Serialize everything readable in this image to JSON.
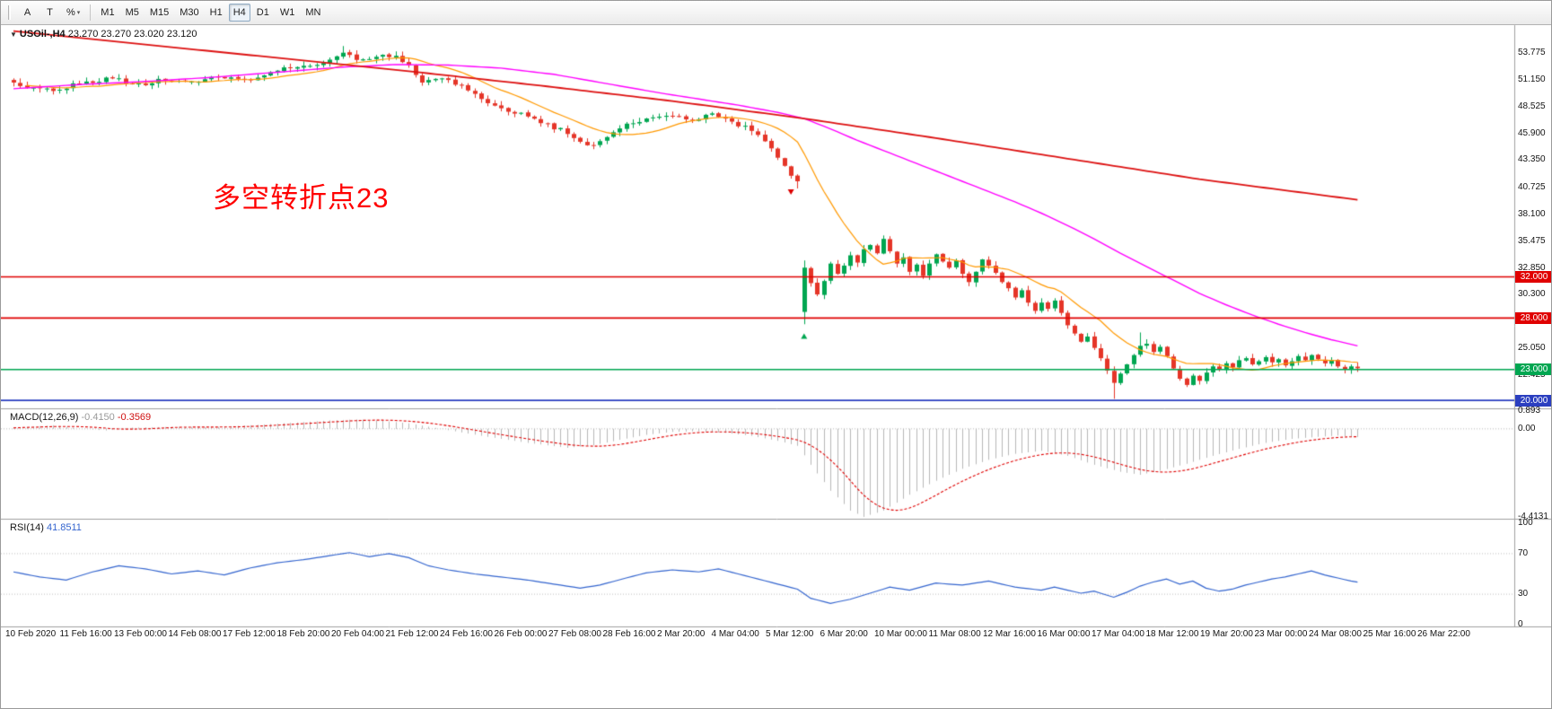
{
  "toolbar": {
    "tools": [
      {
        "label": "A",
        "name": "text-annotation-tool"
      },
      {
        "label": "T",
        "name": "text-tool"
      },
      {
        "label": "%",
        "name": "line-studies-tool",
        "caret": true
      }
    ],
    "timeframes": [
      {
        "label": "M1"
      },
      {
        "label": "M5"
      },
      {
        "label": "M15"
      },
      {
        "label": "M30"
      },
      {
        "label": "H1"
      },
      {
        "label": "H4",
        "active": true
      },
      {
        "label": "D1"
      },
      {
        "label": "W1"
      },
      {
        "label": "MN"
      }
    ]
  },
  "chart": {
    "collapse_icon": "▼",
    "symbol_tf": "USOil-,H4",
    "ohlc": "23.270 23.270 23.020 23.120",
    "annotation": {
      "text": "多空转折点23",
      "color": "#ff0000"
    }
  },
  "chart_data": {
    "type": "candlestick",
    "symbol": "USOil",
    "timeframe": "H4",
    "bars": 205,
    "up_color": "#00a651",
    "down_color": "#e53528",
    "price_axis": {
      "ticks": [
        "53.775",
        "51.150",
        "48.525",
        "45.900",
        "43.350",
        "40.725",
        "38.100",
        "35.475",
        "32.850",
        "30.300",
        "27.675",
        "25.050",
        "22.425"
      ],
      "ylim": [
        19.4,
        56.2
      ]
    },
    "hlines": [
      {
        "label": "32.000",
        "value": 32.0,
        "color": "#e00000"
      },
      {
        "label": "28.000",
        "value": 28.0,
        "color": "#e00000"
      },
      {
        "label": "23.000",
        "value": 23.0,
        "color": "#00a651"
      },
      {
        "label": "20.000",
        "value": 20.0,
        "color": "#2b3fc0"
      }
    ],
    "close_anchors": [
      [
        0,
        50.9
      ],
      [
        3,
        50.4
      ],
      [
        7,
        50.2
      ],
      [
        11,
        51.0
      ],
      [
        15,
        51.3
      ],
      [
        19,
        50.8
      ],
      [
        23,
        51.1
      ],
      [
        27,
        51.0
      ],
      [
        31,
        51.4
      ],
      [
        35,
        51.2
      ],
      [
        39,
        51.9
      ],
      [
        43,
        52.4
      ],
      [
        47,
        52.8
      ],
      [
        50,
        53.8
      ],
      [
        52,
        53.1
      ],
      [
        55,
        53.4
      ],
      [
        58,
        53.5
      ],
      [
        60,
        52.6
      ],
      [
        62,
        50.9
      ],
      [
        65,
        51.3
      ],
      [
        68,
        50.6
      ],
      [
        71,
        49.3
      ],
      [
        74,
        48.4
      ],
      [
        78,
        47.6
      ],
      [
        81,
        46.9
      ],
      [
        84,
        45.9
      ],
      [
        87,
        44.8
      ],
      [
        89,
        45.2
      ],
      [
        93,
        46.9
      ],
      [
        96,
        47.4
      ],
      [
        100,
        47.6
      ],
      [
        103,
        47.2
      ],
      [
        106,
        47.9
      ],
      [
        109,
        47.1
      ],
      [
        112,
        46.2
      ],
      [
        115,
        44.5
      ],
      [
        117,
        42.8
      ],
      [
        119,
        41.3
      ],
      [
        120,
        32.9
      ],
      [
        121,
        31.4
      ],
      [
        122,
        30.3
      ],
      [
        123,
        31.6
      ],
      [
        124,
        33.3
      ],
      [
        125,
        32.3
      ],
      [
        126,
        33.1
      ],
      [
        127,
        34.1
      ],
      [
        128,
        33.4
      ],
      [
        129,
        34.7
      ],
      [
        130,
        35.1
      ],
      [
        131,
        34.3
      ],
      [
        132,
        35.7
      ],
      [
        133,
        34.5
      ],
      [
        134,
        33.3
      ],
      [
        135,
        33.9
      ],
      [
        136,
        32.5
      ],
      [
        137,
        33.2
      ],
      [
        138,
        32.1
      ],
      [
        139,
        33.3
      ],
      [
        140,
        34.2
      ],
      [
        141,
        33.5
      ],
      [
        142,
        32.9
      ],
      [
        143,
        33.6
      ],
      [
        144,
        32.3
      ],
      [
        145,
        31.5
      ],
      [
        146,
        32.5
      ],
      [
        147,
        33.7
      ],
      [
        148,
        33.1
      ],
      [
        149,
        32.4
      ],
      [
        150,
        31.5
      ],
      [
        151,
        30.9
      ],
      [
        152,
        30.0
      ],
      [
        153,
        30.7
      ],
      [
        154,
        29.5
      ],
      [
        155,
        28.7
      ],
      [
        156,
        29.5
      ],
      [
        157,
        28.9
      ],
      [
        158,
        29.7
      ],
      [
        159,
        28.5
      ],
      [
        160,
        27.3
      ],
      [
        161,
        26.5
      ],
      [
        162,
        25.7
      ],
      [
        163,
        26.2
      ],
      [
        164,
        25.1
      ],
      [
        165,
        24.1
      ],
      [
        166,
        22.9
      ],
      [
        167,
        21.7
      ],
      [
        168,
        22.6
      ],
      [
        169,
        23.5
      ],
      [
        170,
        24.4
      ],
      [
        171,
        25.3
      ],
      [
        172,
        25.5
      ],
      [
        173,
        24.7
      ],
      [
        174,
        25.2
      ],
      [
        175,
        24.3
      ],
      [
        176,
        23.1
      ],
      [
        177,
        22.1
      ],
      [
        178,
        21.5
      ],
      [
        179,
        22.4
      ],
      [
        180,
        21.9
      ],
      [
        181,
        22.7
      ],
      [
        182,
        23.3
      ],
      [
        183,
        23.0
      ],
      [
        184,
        23.6
      ],
      [
        185,
        23.2
      ],
      [
        186,
        23.9
      ],
      [
        187,
        24.1
      ],
      [
        188,
        23.5
      ],
      [
        189,
        23.8
      ],
      [
        190,
        24.2
      ],
      [
        191,
        23.7
      ],
      [
        192,
        24.0
      ],
      [
        193,
        23.4
      ],
      [
        194,
        23.8
      ],
      [
        195,
        24.3
      ],
      [
        196,
        23.9
      ],
      [
        197,
        24.4
      ],
      [
        198,
        24.0
      ],
      [
        199,
        23.6
      ],
      [
        200,
        23.9
      ],
      [
        201,
        23.3
      ],
      [
        202,
        23.0
      ],
      [
        203,
        23.3
      ],
      [
        204,
        23.12
      ]
    ],
    "open_overrides": {
      "120": 28.6
    },
    "wick_overrides": {
      "50": {
        "high": 54.45
      },
      "119": {
        "low": 40.6
      },
      "120": {
        "low": 27.4,
        "high": 33.6
      },
      "167": {
        "low": 20.15
      },
      "171": {
        "high": 26.6
      }
    },
    "ma": {
      "fast": {
        "period": 13,
        "color": "#ff9900"
      },
      "mid": {
        "color": "#ff00ff",
        "anchors": [
          [
            0,
            50.3
          ],
          [
            10,
            50.7
          ],
          [
            20,
            51.0
          ],
          [
            30,
            51.4
          ],
          [
            40,
            51.9
          ],
          [
            50,
            52.4
          ],
          [
            58,
            52.65
          ],
          [
            66,
            52.6
          ],
          [
            74,
            52.3
          ],
          [
            82,
            51.7
          ],
          [
            90,
            50.8
          ],
          [
            98,
            49.9
          ],
          [
            104,
            49.3
          ],
          [
            110,
            48.7
          ],
          [
            116,
            48.0
          ],
          [
            120,
            47.4
          ],
          [
            124,
            46.4
          ],
          [
            128,
            45.3
          ],
          [
            132,
            44.3
          ],
          [
            136,
            43.3
          ],
          [
            140,
            42.3
          ],
          [
            144,
            41.3
          ],
          [
            148,
            40.3
          ],
          [
            152,
            39.3
          ],
          [
            156,
            38.2
          ],
          [
            160,
            37.0
          ],
          [
            164,
            35.7
          ],
          [
            168,
            34.3
          ],
          [
            172,
            33.0
          ],
          [
            176,
            31.7
          ],
          [
            180,
            30.4
          ],
          [
            184,
            29.3
          ],
          [
            188,
            28.3
          ],
          [
            192,
            27.4
          ],
          [
            196,
            26.6
          ],
          [
            200,
            25.9
          ],
          [
            204,
            25.3
          ]
        ]
      },
      "slow": {
        "color": "#dd1111",
        "anchors": [
          [
            0,
            55.9
          ],
          [
            20,
            54.6
          ],
          [
            40,
            53.3
          ],
          [
            60,
            52.0
          ],
          [
            80,
            50.6
          ],
          [
            100,
            49.1
          ],
          [
            120,
            47.4
          ],
          [
            140,
            45.5
          ],
          [
            160,
            43.5
          ],
          [
            180,
            41.5
          ],
          [
            204,
            39.5
          ]
        ]
      }
    },
    "markers": [
      {
        "bar": 118,
        "price": 40.0,
        "dir": "down",
        "color": "#dd0000"
      },
      {
        "bar": 120,
        "price": 26.5,
        "dir": "up",
        "color": "#00a651"
      }
    ],
    "macd": {
      "label": "MACD(12,26,9)",
      "value_main": "-0.4150",
      "value_signal": "-0.3569",
      "hist_color": "#b8b8b8",
      "signal_color": "#e00000",
      "scale": {
        "max": 0.893,
        "min": -4.4131,
        "ticks": [
          "0.893",
          "0.00",
          "-4.4131"
        ]
      },
      "anchors": [
        [
          0,
          0.05
        ],
        [
          6,
          0.18
        ],
        [
          10,
          0.02
        ],
        [
          14,
          -0.08
        ],
        [
          18,
          0.06
        ],
        [
          24,
          0.1
        ],
        [
          30,
          0.08
        ],
        [
          36,
          0.18
        ],
        [
          42,
          0.3
        ],
        [
          48,
          0.42
        ],
        [
          52,
          0.47
        ],
        [
          56,
          0.4
        ],
        [
          60,
          0.28
        ],
        [
          64,
          0.05
        ],
        [
          68,
          -0.18
        ],
        [
          72,
          -0.4
        ],
        [
          78,
          -0.7
        ],
        [
          84,
          -0.95
        ],
        [
          88,
          -0.82
        ],
        [
          92,
          -0.55
        ],
        [
          96,
          -0.3
        ],
        [
          100,
          -0.15
        ],
        [
          104,
          -0.12
        ],
        [
          108,
          -0.2
        ],
        [
          112,
          -0.35
        ],
        [
          116,
          -0.6
        ],
        [
          119,
          -0.85
        ],
        [
          121,
          -1.8
        ],
        [
          124,
          -3.1
        ],
        [
          127,
          -4.1
        ],
        [
          129,
          -4.41
        ],
        [
          132,
          -4.1
        ],
        [
          136,
          -3.3
        ],
        [
          140,
          -2.6
        ],
        [
          144,
          -2.0
        ],
        [
          148,
          -1.55
        ],
        [
          152,
          -1.25
        ],
        [
          156,
          -1.1
        ],
        [
          160,
          -1.35
        ],
        [
          164,
          -1.8
        ],
        [
          168,
          -2.15
        ],
        [
          171,
          -2.3
        ],
        [
          174,
          -2.1
        ],
        [
          178,
          -1.75
        ],
        [
          182,
          -1.35
        ],
        [
          186,
          -1.0
        ],
        [
          190,
          -0.7
        ],
        [
          194,
          -0.5
        ],
        [
          198,
          -0.4
        ],
        [
          201,
          -0.34
        ],
        [
          204,
          -0.415
        ]
      ]
    },
    "rsi": {
      "label": "RSI(14)",
      "value": "41.8511",
      "color": "#3465cf",
      "levels": [
        70,
        30
      ],
      "ticks": [
        "100",
        "70",
        "30",
        "0"
      ],
      "anchors": [
        [
          0,
          52
        ],
        [
          4,
          47
        ],
        [
          8,
          44
        ],
        [
          12,
          52
        ],
        [
          16,
          58
        ],
        [
          20,
          55
        ],
        [
          24,
          50
        ],
        [
          28,
          53
        ],
        [
          32,
          49
        ],
        [
          36,
          56
        ],
        [
          40,
          61
        ],
        [
          44,
          64
        ],
        [
          48,
          68
        ],
        [
          51,
          71
        ],
        [
          54,
          67
        ],
        [
          57,
          70
        ],
        [
          60,
          66
        ],
        [
          63,
          58
        ],
        [
          66,
          54
        ],
        [
          70,
          50
        ],
        [
          74,
          47
        ],
        [
          78,
          44
        ],
        [
          82,
          40
        ],
        [
          86,
          36
        ],
        [
          89,
          39
        ],
        [
          93,
          46
        ],
        [
          96,
          51
        ],
        [
          100,
          54
        ],
        [
          104,
          52
        ],
        [
          107,
          55
        ],
        [
          110,
          50
        ],
        [
          113,
          45
        ],
        [
          116,
          40
        ],
        [
          119,
          35
        ],
        [
          121,
          26
        ],
        [
          124,
          21
        ],
        [
          127,
          25
        ],
        [
          130,
          31
        ],
        [
          133,
          37
        ],
        [
          136,
          34
        ],
        [
          140,
          41
        ],
        [
          144,
          39
        ],
        [
          148,
          43
        ],
        [
          152,
          37
        ],
        [
          156,
          34
        ],
        [
          158,
          37
        ],
        [
          160,
          34
        ],
        [
          162,
          31
        ],
        [
          164,
          33
        ],
        [
          166,
          29
        ],
        [
          167,
          27
        ],
        [
          169,
          32
        ],
        [
          171,
          38
        ],
        [
          173,
          42
        ],
        [
          175,
          45
        ],
        [
          177,
          40
        ],
        [
          179,
          43
        ],
        [
          181,
          36
        ],
        [
          183,
          33
        ],
        [
          185,
          35
        ],
        [
          187,
          39
        ],
        [
          189,
          42
        ],
        [
          191,
          45
        ],
        [
          193,
          47
        ],
        [
          195,
          50
        ],
        [
          197,
          53
        ],
        [
          199,
          49
        ],
        [
          201,
          46
        ],
        [
          203,
          43
        ],
        [
          204,
          41.85
        ]
      ]
    }
  },
  "time_axis": {
    "labels": [
      "10 Feb 2020",
      "11 Feb 16:00",
      "13 Feb 00:00",
      "14 Feb 08:00",
      "17 Feb 12:00",
      "18 Feb 20:00",
      "20 Feb 04:00",
      "21 Feb 12:00",
      "24 Feb 16:00",
      "26 Feb 00:00",
      "27 Feb 08:00",
      "28 Feb 16:00",
      "2 Mar 20:00",
      "4 Mar 04:00",
      "5 Mar 12:00",
      "6 Mar 20:00",
      "10 Mar 00:00",
      "11 Mar 08:00",
      "12 Mar 16:00",
      "16 Mar 00:00",
      "17 Mar 04:00",
      "18 Mar 12:00",
      "19 Mar 20:00",
      "23 Mar 00:00",
      "24 Mar 08:00",
      "25 Mar 16:00",
      "26 Mar 22:00"
    ]
  }
}
